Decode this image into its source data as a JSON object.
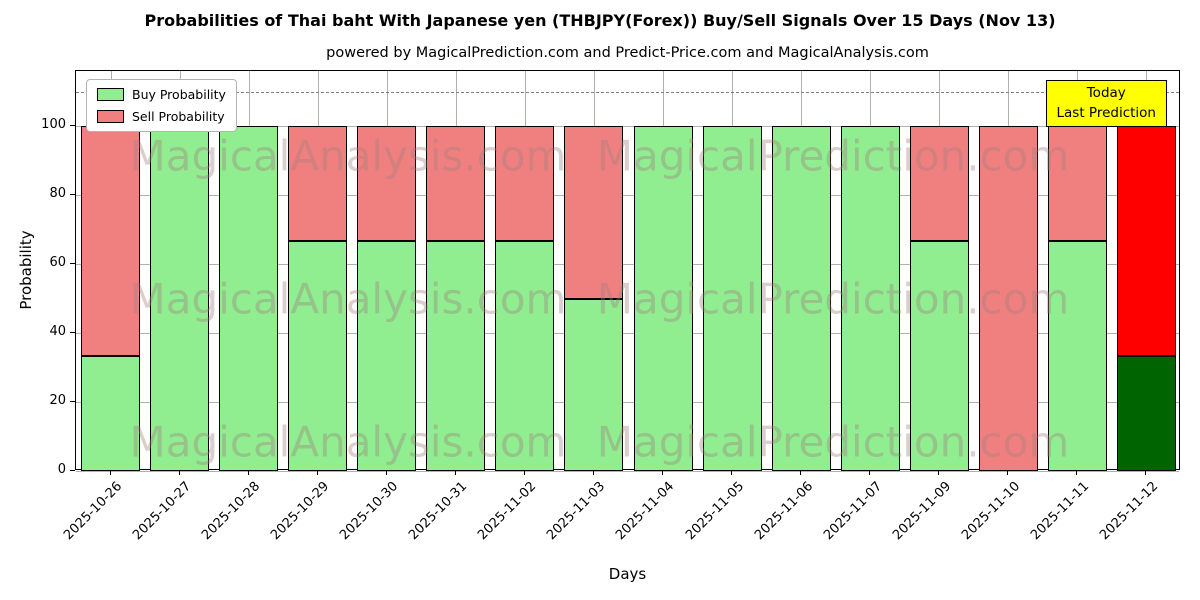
{
  "title": "Probabilities of Thai baht With Japanese yen (THBJPY(Forex)) Buy/Sell Signals Over 15 Days (Nov 13)",
  "subtitle": "powered by MagicalPrediction.com and Predict-Price.com and MagicalAnalysis.com",
  "legend": [
    {
      "label": "Buy Probability",
      "color": "#90ee90"
    },
    {
      "label": "Sell Probability",
      "color": "#f08080"
    }
  ],
  "annotation": {
    "lines": [
      "Today",
      "Last Prediction"
    ],
    "bg": "#ffff00",
    "border": "#000000"
  },
  "watermarks": [
    "MagicalAnalysis.com",
    "MagicalPrediction.com"
  ],
  "chart_data": {
    "type": "bar",
    "stacked": true,
    "title": "Probabilities of Thai baht With Japanese yen (THBJPY(Forex)) Buy/Sell Signals Over 15 Days (Nov 13)",
    "xlabel": "Days",
    "ylabel": "Probability",
    "categories": [
      "2025-10-26",
      "2025-10-27",
      "2025-10-28",
      "2025-10-29",
      "2025-10-30",
      "2025-10-31",
      "2025-11-02",
      "2025-11-03",
      "2025-11-04",
      "2025-11-05",
      "2025-11-06",
      "2025-11-07",
      "2025-11-09",
      "2025-11-10",
      "2025-11-11",
      "2025-11-12"
    ],
    "series": [
      {
        "name": "Buy Probability",
        "color": "#90ee90",
        "values": [
          33.3,
          100,
          100,
          66.7,
          66.7,
          66.7,
          66.7,
          50,
          100,
          100,
          100,
          100,
          66.7,
          0,
          66.7,
          33.3
        ]
      },
      {
        "name": "Sell Probability",
        "color": "#f08080",
        "values": [
          66.7,
          0,
          0,
          33.3,
          33.3,
          33.3,
          33.3,
          50,
          0,
          0,
          0,
          0,
          33.3,
          100,
          33.3,
          66.7
        ]
      }
    ],
    "last_bar_colors": {
      "buy": "#006400",
      "sell": "#ff0000"
    },
    "ylim": [
      0,
      116
    ],
    "yticks": [
      0,
      20,
      40,
      60,
      80,
      100
    ],
    "dashed_line_y": 110,
    "grid": true,
    "legend_position": "upper left"
  }
}
